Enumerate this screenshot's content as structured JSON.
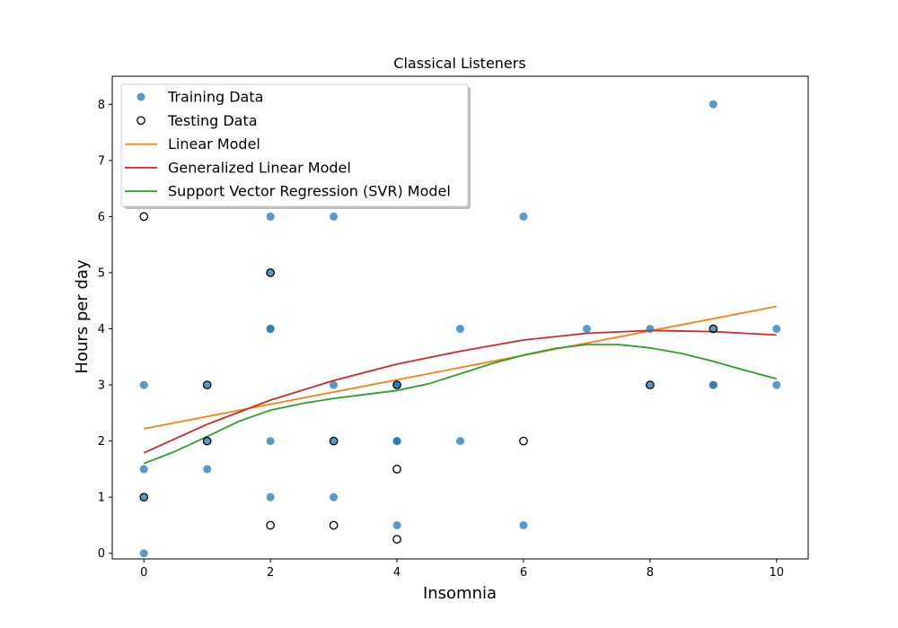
{
  "chart_data": {
    "type": "scatter",
    "title": "Classical Listeners",
    "xlabel": "Insomnia",
    "ylabel": "Hours per day",
    "xlim": [
      -0.5,
      10.5
    ],
    "ylim": [
      -0.1,
      8.5
    ],
    "xticks": [
      0,
      2,
      4,
      6,
      8,
      10
    ],
    "yticks": [
      0,
      1,
      2,
      3,
      4,
      5,
      6,
      7,
      8
    ],
    "grid": false,
    "legend_position": "top-left",
    "series": [
      {
        "name": "Training Data",
        "kind": "scatter",
        "marker": "filled-circle",
        "color": "#1f77b4",
        "points": [
          [
            0,
            0
          ],
          [
            0,
            1
          ],
          [
            0,
            1.5
          ],
          [
            0,
            3
          ],
          [
            1,
            1.5
          ],
          [
            1,
            2
          ],
          [
            1,
            3
          ],
          [
            2,
            1
          ],
          [
            2,
            2
          ],
          [
            2,
            4
          ],
          [
            2,
            4
          ],
          [
            2,
            5
          ],
          [
            2,
            6
          ],
          [
            3,
            1
          ],
          [
            3,
            2
          ],
          [
            3,
            3
          ],
          [
            3,
            6
          ],
          [
            4,
            0.5
          ],
          [
            4,
            2
          ],
          [
            4,
            2
          ],
          [
            4,
            3
          ],
          [
            4,
            3
          ],
          [
            5,
            2
          ],
          [
            5,
            4
          ],
          [
            6,
            0.5
          ],
          [
            6,
            6
          ],
          [
            7,
            4
          ],
          [
            8,
            3
          ],
          [
            8,
            4
          ],
          [
            9,
            3
          ],
          [
            9,
            3
          ],
          [
            9,
            4
          ],
          [
            9,
            8
          ],
          [
            10,
            3
          ],
          [
            10,
            4
          ]
        ]
      },
      {
        "name": "Testing Data",
        "kind": "scatter",
        "marker": "open-circle",
        "color": "#000000",
        "points": [
          [
            0,
            1
          ],
          [
            0,
            6
          ],
          [
            1,
            2
          ],
          [
            1,
            3
          ],
          [
            2,
            0.5
          ],
          [
            2,
            5
          ],
          [
            3,
            0.5
          ],
          [
            3,
            2
          ],
          [
            4,
            0.25
          ],
          [
            4,
            1.5
          ],
          [
            4,
            3
          ],
          [
            6,
            2
          ],
          [
            8,
            3
          ],
          [
            9,
            4
          ]
        ]
      },
      {
        "name": "Linear Model",
        "kind": "line",
        "color": "#ff7f0e",
        "points": [
          [
            0,
            2.22
          ],
          [
            10,
            4.4
          ]
        ]
      },
      {
        "name": "Generalized Linear Model",
        "kind": "line",
        "color": "#d62728",
        "points": [
          [
            0,
            1.79
          ],
          [
            1,
            2.3
          ],
          [
            2,
            2.73
          ],
          [
            3,
            3.08
          ],
          [
            4,
            3.37
          ],
          [
            5,
            3.6
          ],
          [
            6,
            3.8
          ],
          [
            7,
            3.92
          ],
          [
            8,
            3.97
          ],
          [
            9,
            3.95
          ],
          [
            10,
            3.89
          ]
        ]
      },
      {
        "name": "Support Vector Regression (SVR) Model",
        "kind": "line",
        "color": "#2ca02c",
        "points": [
          [
            0,
            1.6
          ],
          [
            0.5,
            1.82
          ],
          [
            1,
            2.08
          ],
          [
            1.5,
            2.35
          ],
          [
            2,
            2.55
          ],
          [
            2.5,
            2.67
          ],
          [
            3,
            2.76
          ],
          [
            3.5,
            2.83
          ],
          [
            4,
            2.9
          ],
          [
            4.5,
            3.02
          ],
          [
            5,
            3.2
          ],
          [
            5.5,
            3.38
          ],
          [
            6,
            3.53
          ],
          [
            6.5,
            3.65
          ],
          [
            7,
            3.72
          ],
          [
            7.5,
            3.72
          ],
          [
            8,
            3.66
          ],
          [
            8.5,
            3.56
          ],
          [
            9,
            3.42
          ],
          [
            9.5,
            3.26
          ],
          [
            10,
            3.11
          ]
        ]
      }
    ]
  }
}
